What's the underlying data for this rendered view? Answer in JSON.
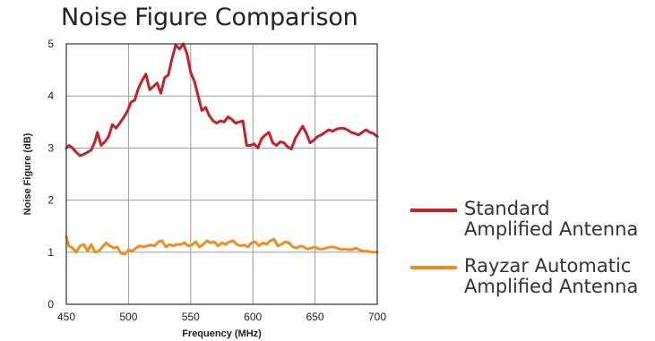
{
  "chart_data": {
    "type": "line",
    "title": "Noise Figure Comparison",
    "xlabel": "Frequency (MHz)",
    "ylabel": "Noise Figure (dB)",
    "xlim": [
      450,
      700
    ],
    "ylim": [
      0,
      5
    ],
    "x_ticks": [
      "450",
      "500",
      "550",
      "600",
      "650",
      "700"
    ],
    "y_ticks": [
      "0",
      "1",
      "2",
      "3",
      "4",
      "5"
    ],
    "grid": true,
    "legend_position": "right",
    "series": [
      {
        "name_line1": "Standard",
        "name_line2": "Amplified Antenna",
        "color": "#c8202a",
        "x": [
          450,
          452,
          455,
          458,
          461,
          464,
          467,
          470,
          473,
          475,
          478,
          481,
          484,
          487,
          490,
          493,
          496,
          499,
          502,
          505,
          508,
          511,
          514,
          517,
          520,
          523,
          526,
          529,
          532,
          535,
          538,
          541,
          544,
          547,
          550,
          553,
          556,
          559,
          562,
          565,
          568,
          571,
          574,
          577,
          580,
          583,
          586,
          589,
          592,
          595,
          598,
          601,
          604,
          607,
          610,
          613,
          616,
          619,
          622,
          625,
          628,
          631,
          634,
          637,
          640,
          643,
          646,
          649,
          652,
          655,
          658,
          661,
          664,
          667,
          670,
          673,
          676,
          679,
          682,
          685,
          688,
          691,
          694,
          697,
          700
        ],
        "y": [
          3.0,
          3.05,
          3.0,
          2.92,
          2.85,
          2.88,
          2.92,
          2.96,
          3.12,
          3.3,
          3.05,
          3.12,
          3.22,
          3.45,
          3.38,
          3.48,
          3.58,
          3.7,
          3.88,
          3.92,
          4.15,
          4.3,
          4.42,
          4.12,
          4.18,
          4.25,
          4.05,
          4.35,
          4.4,
          4.72,
          4.98,
          4.9,
          5.0,
          4.82,
          4.45,
          4.28,
          4.0,
          3.72,
          3.78,
          3.62,
          3.52,
          3.48,
          3.52,
          3.5,
          3.6,
          3.55,
          3.48,
          3.5,
          3.52,
          3.05,
          3.05,
          3.08,
          3.0,
          3.18,
          3.25,
          3.3,
          3.1,
          3.05,
          3.12,
          3.1,
          3.02,
          2.98,
          3.18,
          3.3,
          3.42,
          3.28,
          3.1,
          3.15,
          3.22,
          3.25,
          3.3,
          3.35,
          3.32,
          3.36,
          3.38,
          3.38,
          3.35,
          3.3,
          3.28,
          3.25,
          3.3,
          3.35,
          3.3,
          3.28,
          3.22
        ]
      },
      {
        "name_line1": "Rayzar Automatic",
        "name_line2": "Amplified Antenna",
        "color": "#f28c1e",
        "x": [
          450,
          452,
          455,
          458,
          461,
          464,
          467,
          470,
          473,
          476,
          479,
          482,
          485,
          488,
          491,
          494,
          497,
          500,
          503,
          506,
          509,
          512,
          515,
          518,
          521,
          524,
          527,
          530,
          533,
          536,
          539,
          542,
          545,
          548,
          551,
          554,
          557,
          560,
          563,
          566,
          569,
          572,
          575,
          578,
          581,
          584,
          587,
          590,
          593,
          596,
          599,
          602,
          605,
          608,
          611,
          614,
          617,
          620,
          623,
          626,
          629,
          632,
          635,
          638,
          641,
          644,
          647,
          650,
          653,
          656,
          659,
          662,
          665,
          668,
          671,
          674,
          677,
          680,
          683,
          686,
          689,
          692,
          695,
          698,
          700
        ],
        "y": [
          1.3,
          1.12,
          1.08,
          1.0,
          1.12,
          1.15,
          1.02,
          1.15,
          1.0,
          1.02,
          1.1,
          1.18,
          1.12,
          1.08,
          1.1,
          0.98,
          0.96,
          1.05,
          1.02,
          1.08,
          1.12,
          1.1,
          1.12,
          1.14,
          1.12,
          1.2,
          1.22,
          1.1,
          1.15,
          1.12,
          1.15,
          1.15,
          1.18,
          1.12,
          1.14,
          1.2,
          1.1,
          1.15,
          1.22,
          1.18,
          1.2,
          1.12,
          1.18,
          1.15,
          1.2,
          1.22,
          1.15,
          1.12,
          1.14,
          1.1,
          1.18,
          1.2,
          1.12,
          1.18,
          1.15,
          1.22,
          1.25,
          1.12,
          1.15,
          1.2,
          1.18,
          1.1,
          1.08,
          1.12,
          1.1,
          1.06,
          1.08,
          1.1,
          1.06,
          1.06,
          1.08,
          1.1,
          1.1,
          1.08,
          1.05,
          1.06,
          1.05,
          1.05,
          1.08,
          1.04,
          1.02,
          1.02,
          1.0,
          1.0,
          1.0
        ]
      }
    ]
  }
}
